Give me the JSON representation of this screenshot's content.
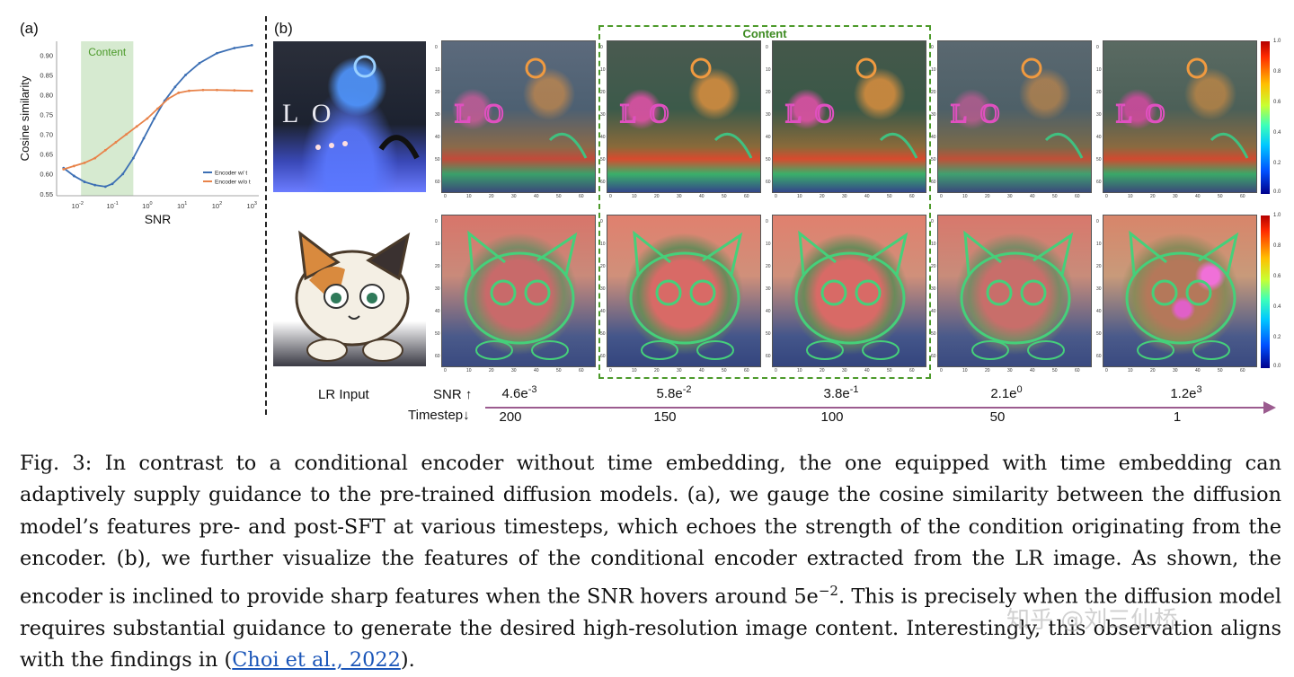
{
  "panel_a_label": "(a)",
  "panel_b_label": "(b)",
  "chart_data": {
    "type": "line",
    "title": "",
    "xlabel": "SNR",
    "ylabel": "Cosine similarity",
    "x_scale": "log",
    "x_ticks": [
      "10^-2",
      "10^-1",
      "10^0",
      "10^1",
      "10^2",
      "10^3"
    ],
    "y_ticks": [
      0.55,
      0.6,
      0.65,
      0.7,
      0.75,
      0.8,
      0.85,
      0.9
    ],
    "ylim": [
      0.545,
      0.935
    ],
    "xlim_log10": [
      -2.6,
      3.2
    ],
    "shaded_region": {
      "label": "Content",
      "x_from_log10": -1.9,
      "x_to_log10": -0.4,
      "color": "#d6ead0"
    },
    "legend_position": "bottom-right",
    "series": [
      {
        "name": "Encoder w/ t",
        "color": "#3c6fb4",
        "x_log10": [
          -2.4,
          -2.1,
          -1.8,
          -1.5,
          -1.2,
          -1.0,
          -0.7,
          -0.4,
          -0.1,
          0.2,
          0.5,
          0.8,
          1.1,
          1.5,
          2.0,
          2.5,
          3.0
        ],
        "y": [
          0.615,
          0.595,
          0.58,
          0.572,
          0.568,
          0.575,
          0.6,
          0.64,
          0.69,
          0.74,
          0.785,
          0.82,
          0.85,
          0.88,
          0.905,
          0.918,
          0.925
        ]
      },
      {
        "name": "Encoder w/o t",
        "color": "#e8834a",
        "x_log10": [
          -2.4,
          -2.1,
          -1.8,
          -1.5,
          -1.2,
          -0.9,
          -0.6,
          -0.3,
          0.0,
          0.3,
          0.6,
          0.9,
          1.2,
          1.6,
          2.0,
          2.5,
          3.0
        ],
        "y": [
          0.612,
          0.62,
          0.628,
          0.64,
          0.66,
          0.68,
          0.7,
          0.72,
          0.74,
          0.765,
          0.79,
          0.805,
          0.81,
          0.812,
          0.812,
          0.811,
          0.81
        ]
      }
    ]
  },
  "content_label": "Content",
  "heatmap_axis_ticks": [
    "0",
    "10",
    "20",
    "30",
    "40",
    "50",
    "60"
  ],
  "colorbar_ticks": [
    "1.0",
    "0.8",
    "0.6",
    "0.4",
    "0.2",
    "0.0"
  ],
  "row_labels": {
    "lr_input": "LR Input",
    "snr": "SNR",
    "timestep": "Timestep"
  },
  "snr_values": [
    "4.6e-3",
    "5.8e-2",
    "3.8e-1",
    "2.1e0",
    "1.2e3"
  ],
  "timestep_values": [
    "200",
    "150",
    "100",
    "50",
    "1"
  ],
  "caption": {
    "p1": "Fig. 3: In contrast to a conditional encoder without time embedding, the one equipped with time embedding can adaptively supply guidance to the pre-trained diffusion models. (a), we gauge the cosine similarity between the diffusion model’s features pre- and post-SFT at various timesteps, which echoes the strength of the condition originating from the encoder. (b), we further visualize the features of the conditional encoder extracted from the LR image. As shown, the encoder is inclined to provide sharp features when the SNR hovers around 5e",
    "sup": "−2",
    "p2": ". This is precisely when the diffusion model requires substantial guidance to generate the desired high-resolution image content. Interestingly, this observation aligns with the findings in (",
    "link": "Choi et al., 2022",
    "p3": ")."
  },
  "watermark": "知乎 @刘三仙桥"
}
